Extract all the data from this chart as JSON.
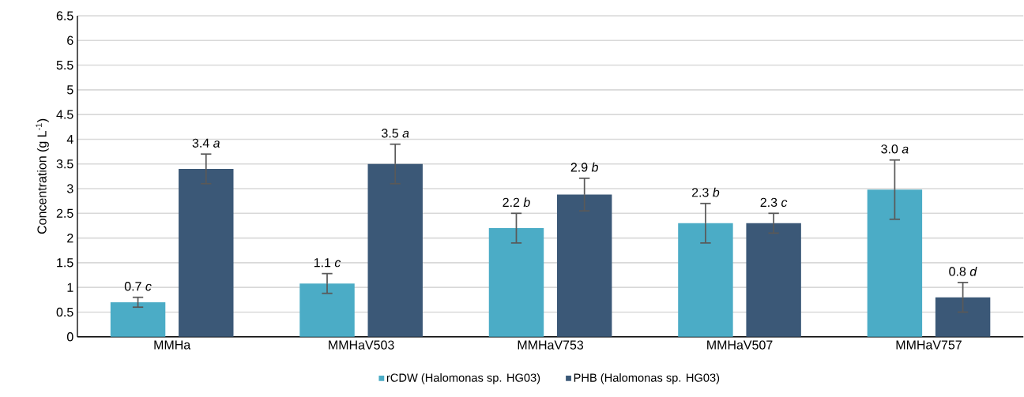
{
  "chart_data": {
    "type": "bar",
    "ylabel": "Concentration (g L$^{-1}$)",
    "categories": [
      "MMHa",
      "MMHaV503",
      "MMHaV753",
      "MMHaV507",
      "MMHaV757"
    ],
    "series": [
      {
        "name": "rCDW (Halomonas sp. HG03)",
        "color": "#4bacc6",
        "values": [
          0.7,
          1.08,
          2.2,
          2.3,
          2.98
        ],
        "errors": [
          0.1,
          0.2,
          0.3,
          0.4,
          0.6
        ],
        "value_labels": [
          "0.7 *c*",
          "1.1 *c*",
          "2.2 *b*",
          "2.3 *b*",
          "3.0 *a*"
        ]
      },
      {
        "name": "PHB (Halomonas sp. HG03)",
        "color": "#3b5877",
        "values": [
          3.4,
          3.5,
          2.88,
          2.3,
          0.8
        ],
        "errors": [
          0.3,
          0.4,
          0.33,
          0.2,
          0.3
        ],
        "value_labels": [
          "3.4 *a*",
          "3.5 *a*",
          "2.9 *b*",
          "2.3 *c*",
          "0.8 *d*"
        ]
      }
    ],
    "ylim": [
      0,
      6.5
    ],
    "yticks": [
      0,
      0.5,
      1,
      1.5,
      2,
      2.5,
      3,
      3.5,
      4,
      4.5,
      5,
      5.5,
      6,
      6.5
    ],
    "grid": "y",
    "legend": "bottom"
  }
}
